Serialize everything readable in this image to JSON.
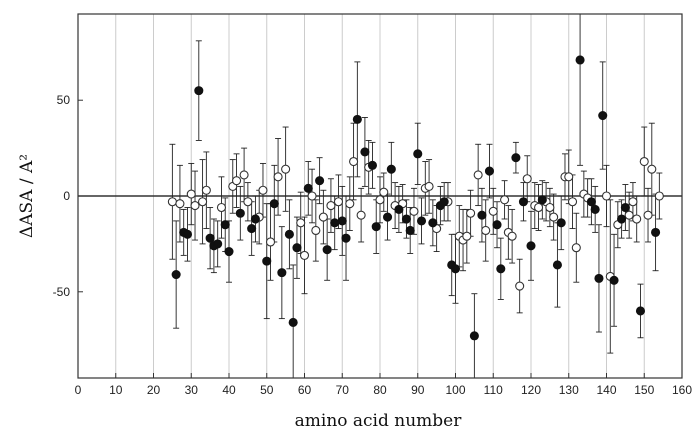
{
  "chart_data": {
    "type": "scatter",
    "xlabel": "amino acid number",
    "ylabel": "ΔASA / A²",
    "xlim": [
      0,
      160
    ],
    "ylim": [
      -95,
      95
    ],
    "x_ticks": [
      0,
      10,
      20,
      30,
      40,
      50,
      60,
      70,
      80,
      90,
      100,
      110,
      120,
      130,
      140,
      150,
      160
    ],
    "y_ticks": [
      -50,
      0,
      50
    ],
    "grid": "vertical",
    "zero_line": true,
    "legend": "none",
    "colors": {
      "filled": "#111111",
      "open_fill": "#ffffff",
      "open_stroke": "#333333",
      "grid": "#cccccc",
      "error_bar": "#222222"
    },
    "series": [
      {
        "marker": "filled-circle",
        "points": [
          {
            "x": 26,
            "y": -41,
            "err": 28
          },
          {
            "x": 28,
            "y": -19,
            "err": 12
          },
          {
            "x": 29,
            "y": -20,
            "err": 14
          },
          {
            "x": 32,
            "y": 55,
            "err": 26
          },
          {
            "x": 35,
            "y": -22,
            "err": 16
          },
          {
            "x": 36,
            "y": -26,
            "err": 14
          },
          {
            "x": 37,
            "y": -25,
            "err": 12
          },
          {
            "x": 39,
            "y": -15,
            "err": 14
          },
          {
            "x": 40,
            "y": -29,
            "err": 16
          },
          {
            "x": 43,
            "y": -9,
            "err": 14
          },
          {
            "x": 46,
            "y": -17,
            "err": 14
          },
          {
            "x": 47,
            "y": -12,
            "err": 12
          },
          {
            "x": 50,
            "y": -34,
            "err": 30
          },
          {
            "x": 52,
            "y": -4,
            "err": 20
          },
          {
            "x": 54,
            "y": -40,
            "err": 24
          },
          {
            "x": 56,
            "y": -20,
            "err": 18
          },
          {
            "x": 57,
            "y": -66,
            "err": 30
          },
          {
            "x": 58,
            "y": -27,
            "err": 16
          },
          {
            "x": 61,
            "y": 4,
            "err": 14
          },
          {
            "x": 64,
            "y": 8,
            "err": 12
          },
          {
            "x": 66,
            "y": -28,
            "err": 16
          },
          {
            "x": 68,
            "y": -14,
            "err": 14
          },
          {
            "x": 70,
            "y": -13,
            "err": 18
          },
          {
            "x": 71,
            "y": -22,
            "err": 22
          },
          {
            "x": 74,
            "y": 40,
            "err": 30
          },
          {
            "x": 76,
            "y": 23,
            "err": 18
          },
          {
            "x": 78,
            "y": 16,
            "err": 12
          },
          {
            "x": 79,
            "y": -16,
            "err": 14
          },
          {
            "x": 82,
            "y": -11,
            "err": 12
          },
          {
            "x": 83,
            "y": 14,
            "err": 14
          },
          {
            "x": 85,
            "y": -7,
            "err": 12
          },
          {
            "x": 87,
            "y": -12,
            "err": 10
          },
          {
            "x": 88,
            "y": -18,
            "err": 12
          },
          {
            "x": 90,
            "y": 22,
            "err": 16
          },
          {
            "x": 91,
            "y": -13,
            "err": 12
          },
          {
            "x": 94,
            "y": -14,
            "err": 12
          },
          {
            "x": 96,
            "y": -5,
            "err": 10
          },
          {
            "x": 97,
            "y": -3,
            "err": 10
          },
          {
            "x": 99,
            "y": -36,
            "err": 16
          },
          {
            "x": 100,
            "y": -38,
            "err": 18
          },
          {
            "x": 105,
            "y": -73,
            "err": 22
          },
          {
            "x": 107,
            "y": -10,
            "err": 14
          },
          {
            "x": 109,
            "y": 13,
            "err": 14
          },
          {
            "x": 111,
            "y": -15,
            "err": 12
          },
          {
            "x": 112,
            "y": -38,
            "err": 16
          },
          {
            "x": 116,
            "y": 20,
            "err": 8
          },
          {
            "x": 118,
            "y": -3,
            "err": 10
          },
          {
            "x": 120,
            "y": -26,
            "err": 18
          },
          {
            "x": 123,
            "y": -2,
            "err": 10
          },
          {
            "x": 127,
            "y": -36,
            "err": 22
          },
          {
            "x": 128,
            "y": -14,
            "err": 14
          },
          {
            "x": 133,
            "y": 71,
            "err": 55
          },
          {
            "x": 136,
            "y": -3,
            "err": 12
          },
          {
            "x": 137,
            "y": -7,
            "err": 12
          },
          {
            "x": 138,
            "y": -43,
            "err": 28
          },
          {
            "x": 139,
            "y": 42,
            "err": 28
          },
          {
            "x": 142,
            "y": -44,
            "err": 24
          },
          {
            "x": 144,
            "y": -12,
            "err": 10
          },
          {
            "x": 145,
            "y": -6,
            "err": 12
          },
          {
            "x": 149,
            "y": -60,
            "err": 14
          },
          {
            "x": 153,
            "y": -19,
            "err": 20
          }
        ]
      },
      {
        "marker": "open-circle",
        "points": [
          {
            "x": 25,
            "y": -3,
            "err": 30
          },
          {
            "x": 27,
            "y": -4,
            "err": 20
          },
          {
            "x": 30,
            "y": 1,
            "err": 16
          },
          {
            "x": 31,
            "y": -5,
            "err": 18
          },
          {
            "x": 33,
            "y": -3,
            "err": 22
          },
          {
            "x": 34,
            "y": 3,
            "err": 20
          },
          {
            "x": 38,
            "y": -6,
            "err": 16
          },
          {
            "x": 41,
            "y": 5,
            "err": 14
          },
          {
            "x": 42,
            "y": 8,
            "err": 14
          },
          {
            "x": 44,
            "y": 11,
            "err": 14
          },
          {
            "x": 45,
            "y": -3,
            "err": 10
          },
          {
            "x": 48,
            "y": -11,
            "err": 14
          },
          {
            "x": 49,
            "y": 3,
            "err": 14
          },
          {
            "x": 51,
            "y": -24,
            "err": 20
          },
          {
            "x": 53,
            "y": 10,
            "err": 20
          },
          {
            "x": 55,
            "y": 14,
            "err": 22
          },
          {
            "x": 59,
            "y": -14,
            "err": 16
          },
          {
            "x": 60,
            "y": -31,
            "err": 20
          },
          {
            "x": 62,
            "y": 0,
            "err": 14
          },
          {
            "x": 63,
            "y": -18,
            "err": 16
          },
          {
            "x": 65,
            "y": -11,
            "err": 14
          },
          {
            "x": 67,
            "y": -5,
            "err": 14
          },
          {
            "x": 69,
            "y": -3,
            "err": 14
          },
          {
            "x": 72,
            "y": -4,
            "err": 14
          },
          {
            "x": 73,
            "y": 18,
            "err": 20
          },
          {
            "x": 75,
            "y": -10,
            "err": 14
          },
          {
            "x": 77,
            "y": 15,
            "err": 14
          },
          {
            "x": 80,
            "y": -2,
            "err": 12
          },
          {
            "x": 81,
            "y": 2,
            "err": 10
          },
          {
            "x": 84,
            "y": -5,
            "err": 12
          },
          {
            "x": 86,
            "y": -4,
            "err": 10
          },
          {
            "x": 89,
            "y": -8,
            "err": 12
          },
          {
            "x": 92,
            "y": 4,
            "err": 14
          },
          {
            "x": 93,
            "y": 5,
            "err": 14
          },
          {
            "x": 95,
            "y": -17,
            "err": 12
          },
          {
            "x": 98,
            "y": -3,
            "err": 10
          },
          {
            "x": 101,
            "y": -21,
            "err": 16
          },
          {
            "x": 102,
            "y": -23,
            "err": 16
          },
          {
            "x": 103,
            "y": -21,
            "err": 14
          },
          {
            "x": 104,
            "y": -9,
            "err": 12
          },
          {
            "x": 106,
            "y": 11,
            "err": 16
          },
          {
            "x": 108,
            "y": -18,
            "err": 16
          },
          {
            "x": 110,
            "y": -8,
            "err": 12
          },
          {
            "x": 113,
            "y": -2,
            "err": 10
          },
          {
            "x": 114,
            "y": -19,
            "err": 14
          },
          {
            "x": 115,
            "y": -21,
            "err": 14
          },
          {
            "x": 117,
            "y": -47,
            "err": 14
          },
          {
            "x": 119,
            "y": 9,
            "err": 12
          },
          {
            "x": 121,
            "y": -5,
            "err": 12
          },
          {
            "x": 122,
            "y": -6,
            "err": 12
          },
          {
            "x": 124,
            "y": -3,
            "err": 10
          },
          {
            "x": 125,
            "y": -6,
            "err": 10
          },
          {
            "x": 126,
            "y": -11,
            "err": 12
          },
          {
            "x": 129,
            "y": 10,
            "err": 12
          },
          {
            "x": 130,
            "y": 10,
            "err": 14
          },
          {
            "x": 131,
            "y": -3,
            "err": 14
          },
          {
            "x": 132,
            "y": -27,
            "err": 18
          },
          {
            "x": 134,
            "y": 1,
            "err": 12
          },
          {
            "x": 135,
            "y": -1,
            "err": 10
          },
          {
            "x": 140,
            "y": 0,
            "err": 16
          },
          {
            "x": 141,
            "y": -42,
            "err": 40
          },
          {
            "x": 143,
            "y": -15,
            "err": 12
          },
          {
            "x": 146,
            "y": -10,
            "err": 12
          },
          {
            "x": 147,
            "y": -3,
            "err": 10
          },
          {
            "x": 148,
            "y": -12,
            "err": 12
          },
          {
            "x": 150,
            "y": 18,
            "err": 18
          },
          {
            "x": 151,
            "y": -10,
            "err": 14
          },
          {
            "x": 152,
            "y": 14,
            "err": 24
          },
          {
            "x": 154,
            "y": 0,
            "err": 12
          }
        ]
      }
    ]
  }
}
